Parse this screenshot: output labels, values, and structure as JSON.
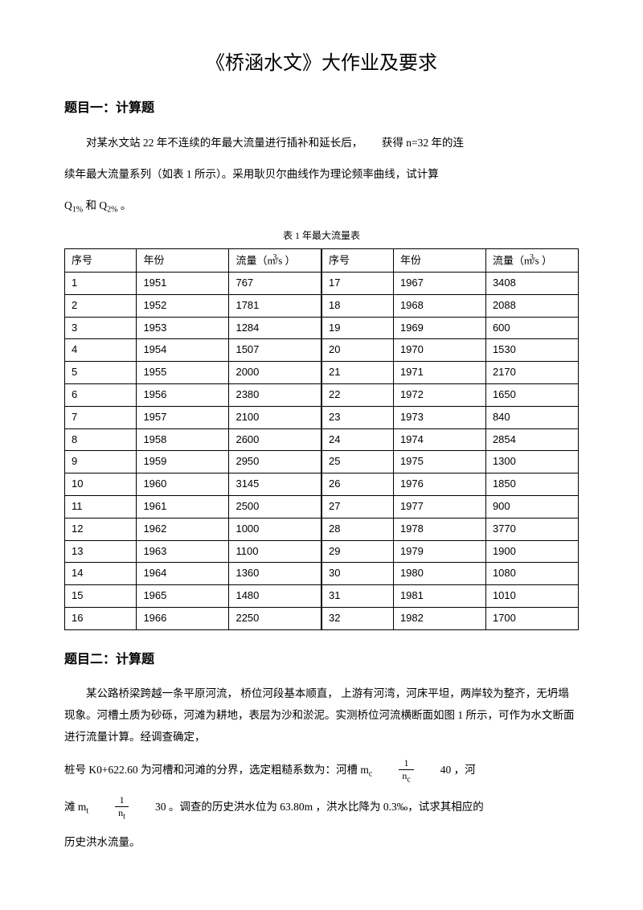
{
  "doc": {
    "title": "《桥涵水文》大作业及要求",
    "q1": {
      "heading": "题目一：计算题",
      "p1a": "对某水文站 22 年不连续的年最大流量进行插补和延长后，",
      "p1b": "获得 n=32 年的连",
      "p2": "续年最大流量系列（如表   1 所示）。采用耿贝尔曲线作为理论频率曲线，试计算",
      "p3a": "Q",
      "p3b": "1%",
      "p3c": " 和 Q",
      "p3d": "2%",
      "p3e": " 。"
    },
    "table": {
      "caption": "表 1     年最大流量表",
      "headers": {
        "seq": "序号",
        "year": "年份",
        "flow": "流量（m/s ）"
      },
      "rows": [
        [
          "1",
          "1951",
          "767",
          "17",
          "1967",
          "3408"
        ],
        [
          "2",
          "1952",
          "1781",
          "18",
          "1968",
          "2088"
        ],
        [
          "3",
          "1953",
          "1284",
          "19",
          "1969",
          "600"
        ],
        [
          "4",
          "1954",
          "1507",
          "20",
          "1970",
          "1530"
        ],
        [
          "5",
          "1955",
          "2000",
          "21",
          "1971",
          "2170"
        ],
        [
          "6",
          "1956",
          "2380",
          "22",
          "1972",
          "1650"
        ],
        [
          "7",
          "1957",
          "2100",
          "23",
          "1973",
          "840"
        ],
        [
          "8",
          "1958",
          "2600",
          "24",
          "1974",
          "2854"
        ],
        [
          "9",
          "1959",
          "2950",
          "25",
          "1975",
          "1300"
        ],
        [
          "10",
          "1960",
          "3145",
          "26",
          "1976",
          "1850"
        ],
        [
          "11",
          "1961",
          "2500",
          "27",
          "1977",
          "900"
        ],
        [
          "12",
          "1962",
          "1000",
          "28",
          "1978",
          "3770"
        ],
        [
          "13",
          "1963",
          "1100",
          "29",
          "1979",
          "1900"
        ],
        [
          "14",
          "1964",
          "1360",
          "30",
          "1980",
          "1080"
        ],
        [
          "15",
          "1965",
          "1480",
          "31",
          "1981",
          "1010"
        ],
        [
          "16",
          "1966",
          "2250",
          "32",
          "1982",
          "1700"
        ]
      ]
    },
    "q2": {
      "heading": "题目二：计算题",
      "p1": "某公路桥梁跨越一条平原河流，  桥位河段基本顺直，  上游有河湾，河床平坦，两岸较为整齐，无坍塌现象。河槽土质为砂砾，河滩为耕地，表层为沙和淤泥。实测桥位河流横断面如图 1 所示，可作为水文断面进行流量计算。经调查确定，",
      "p2a": "桩号 K0+622.60 为河槽和河滩的分界，选定粗糙系数为：河槽   m",
      "p2b": "c",
      "p2c": "40 ，河",
      "p3a": "滩 m",
      "p3b": "t",
      "p3c": "30 。调查的历史洪水位为 63.80m ，洪水比降为 0.3‰，试求其相应的",
      "p4": "历史洪水流量。",
      "frac1_num": "1",
      "frac1_den_a": "n",
      "frac1_den_b": "c",
      "frac2_num": "1",
      "frac2_den_a": "n",
      "frac2_den_b": "t"
    }
  },
  "style": {
    "page_bg": "#ffffff",
    "text_color": "#000000",
    "border_color": "#000000",
    "title_fontsize": 24,
    "heading_fontsize": 16,
    "body_fontsize": 13.5,
    "table_fontsize": 13,
    "caption_fontsize": 12,
    "col_widths_pct": [
      14,
      18,
      18,
      14,
      18,
      18
    ]
  }
}
